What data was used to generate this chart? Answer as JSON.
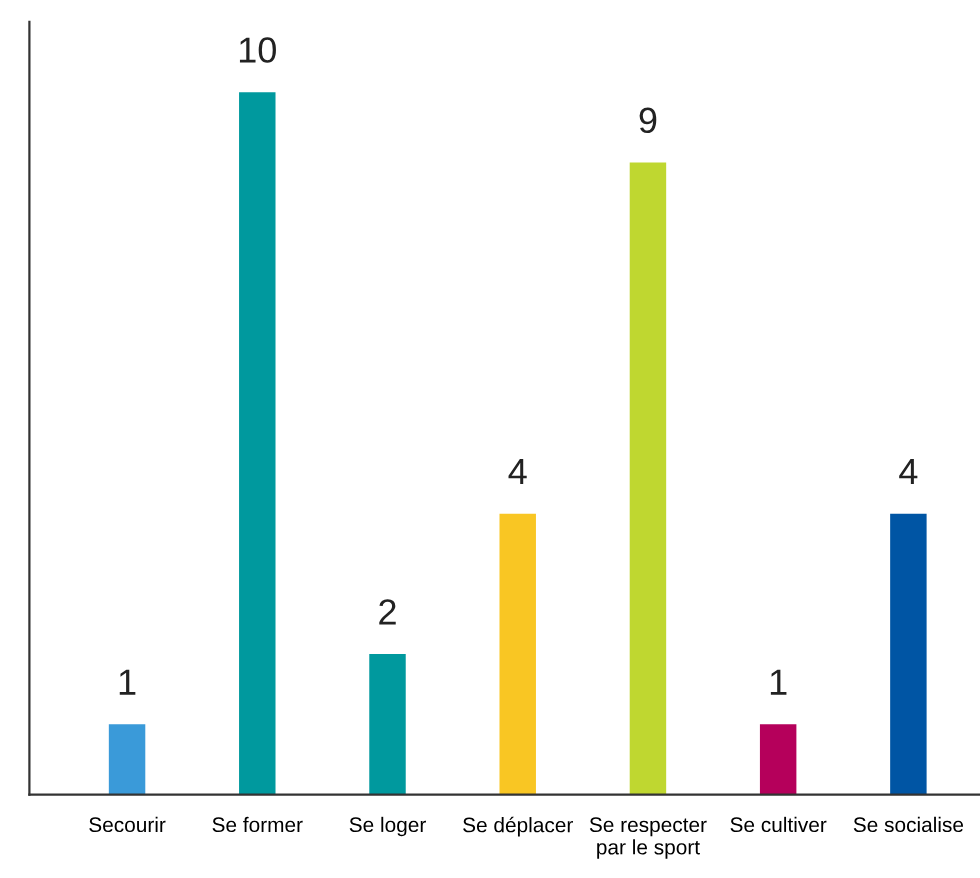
{
  "chart_data": {
    "type": "bar",
    "categories": [
      "Secourir",
      "Se former",
      "Se loger",
      "Se déplacer",
      "Se respecter\npar le sport",
      "Se cultiver",
      "Se socialise"
    ],
    "values": [
      1,
      10,
      2,
      4,
      9,
      1,
      4
    ],
    "colors": [
      "#3a9ad9",
      "#00999e",
      "#00999e",
      "#f9c623",
      "#bfd730",
      "#b5005b",
      "#0055a4"
    ],
    "data_labels": true,
    "grid": false,
    "legend": false
  }
}
